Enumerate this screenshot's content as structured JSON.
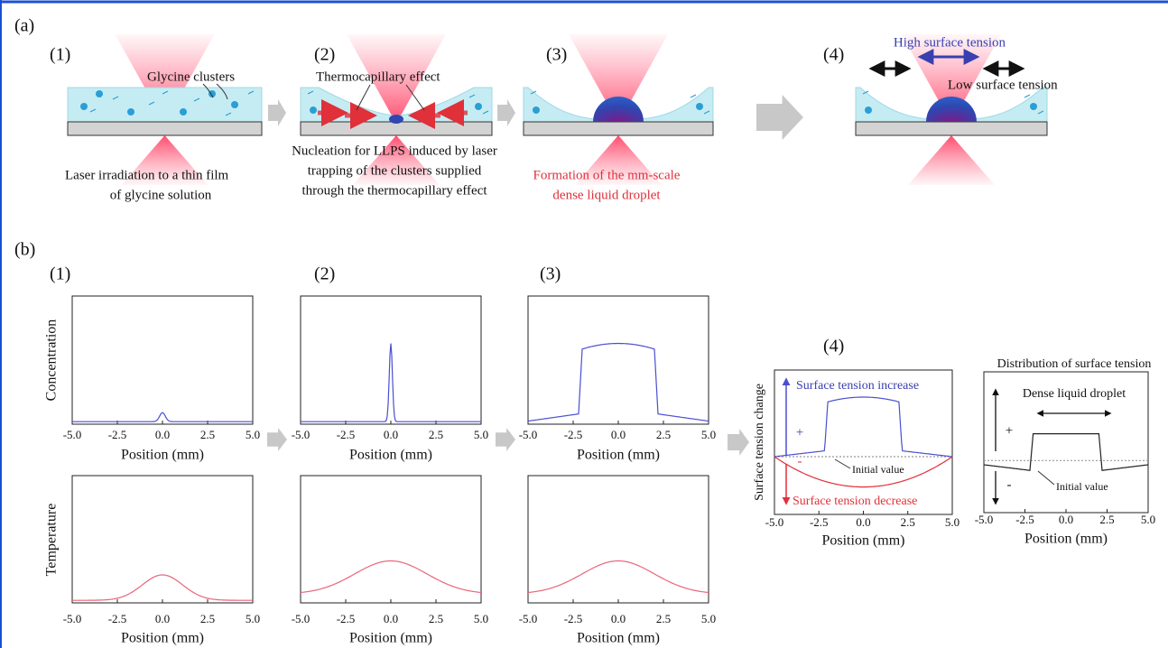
{
  "panel_a": {
    "label": "(a)",
    "steps": [
      {
        "label": "(1)",
        "caption": [
          "Laser irradiation to a thin film",
          "of glycine solution"
        ]
      },
      {
        "label": "(2)",
        "caption": [
          "Nucleation for LLPS induced by laser",
          "trapping of the clusters supplied",
          "through the thermocapillary effect"
        ]
      },
      {
        "label": "(3)",
        "caption": [
          "Formation of the mm-scale",
          "dense liquid droplet"
        ]
      },
      {
        "label": "(4)",
        "caption": []
      }
    ],
    "glycine_clusters": "Glycine clusters",
    "thermocapillary": "Thermocapillary effect",
    "high_tension": "High surface tension",
    "low_tension": "Low surface tension"
  },
  "panel_b": {
    "label": "(b)",
    "plot_labels": [
      "(1)",
      "(2)",
      "(3)",
      "(4)"
    ],
    "xticks": [
      {
        "value": -5,
        "label": "-5.0"
      },
      {
        "value": -2.5,
        "label": "-2.5"
      },
      {
        "value": 0,
        "label": "0.0"
      },
      {
        "value": 2.5,
        "label": "2.5"
      },
      {
        "value": 5,
        "label": "5.0"
      }
    ],
    "x_label": "Position (mm)",
    "concentration": "Concentration",
    "temperature": "Temperature",
    "surface": {
      "y_label": "Surface tension change",
      "increase": "Surface tension increase",
      "decrease": "Surface tension decrease",
      "plus": "+",
      "minus": "-",
      "initial": "Initial value",
      "distribution_title": "Distribution of surface tension",
      "dense": "Dense liquid droplet"
    }
  }
}
